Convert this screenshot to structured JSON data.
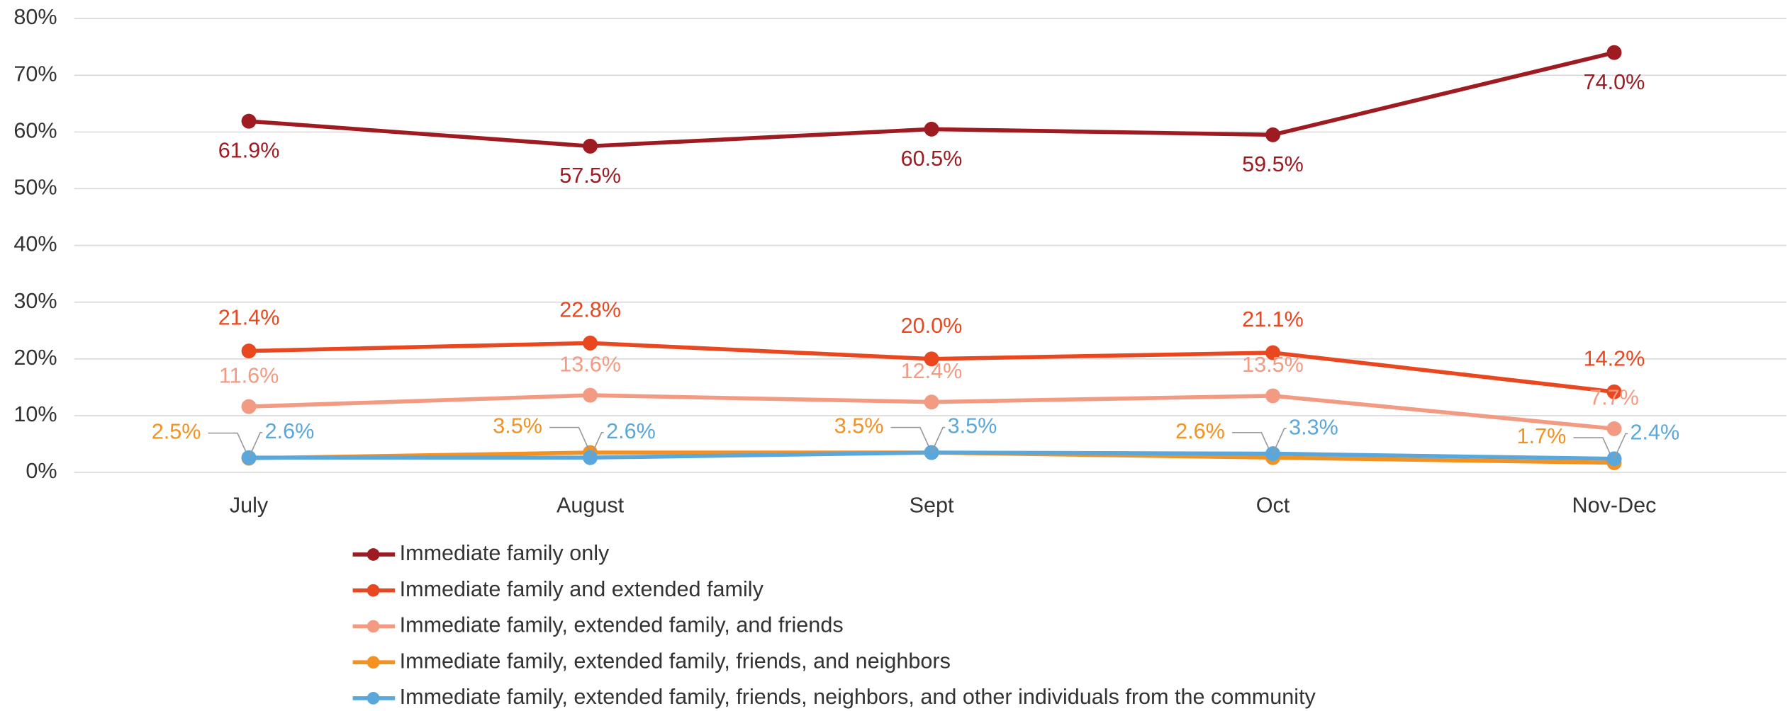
{
  "chart_data": {
    "type": "line",
    "categories": [
      "July",
      "August",
      "Sept",
      "Oct",
      "Nov-Dec"
    ],
    "ylim": [
      0,
      80
    ],
    "yticks": [
      {
        "value": 0,
        "label": "0%"
      },
      {
        "value": 10,
        "label": "10%"
      },
      {
        "value": 20,
        "label": "20%"
      },
      {
        "value": 30,
        "label": "30%"
      },
      {
        "value": 40,
        "label": "40%"
      },
      {
        "value": 50,
        "label": "50%"
      },
      {
        "value": 60,
        "label": "60%"
      },
      {
        "value": 70,
        "label": "70%"
      },
      {
        "value": 80,
        "label": "80%"
      }
    ],
    "grid": true,
    "legend": "bottom",
    "series": [
      {
        "name": "Immediate family only",
        "color": "#9e1b22",
        "values": [
          61.9,
          57.5,
          60.5,
          59.5,
          74.0
        ],
        "value_labels": [
          "61.9%",
          "57.5%",
          "60.5%",
          "59.5%",
          "74.0%"
        ]
      },
      {
        "name": "Immediate family and extended family",
        "color": "#e8471f",
        "values": [
          21.4,
          22.8,
          20.0,
          21.1,
          14.2
        ],
        "value_labels": [
          "21.4%",
          "22.8%",
          "20.0%",
          "21.1%",
          "14.2%"
        ]
      },
      {
        "name": "Immediate family, extended family, and friends",
        "color": "#f29a82",
        "values": [
          11.6,
          13.6,
          12.4,
          13.5,
          7.7
        ],
        "value_labels": [
          "11.6%",
          "13.6%",
          "12.4%",
          "13.5%",
          "7.7%"
        ]
      },
      {
        "name": "Immediate family, extended family, friends, and neighbors",
        "color": "#f39121",
        "values": [
          2.5,
          3.5,
          3.5,
          2.6,
          1.7
        ],
        "value_labels": [
          "2.5%",
          "3.5%",
          "3.5%",
          "2.6%",
          "1.7%"
        ]
      },
      {
        "name": "Immediate family, extended family, friends, neighbors, and other individuals from the community",
        "color": "#5aa7dc",
        "values": [
          2.6,
          2.6,
          3.5,
          3.3,
          2.4
        ],
        "value_labels": [
          "2.6%",
          "2.6%",
          "3.5%",
          "3.3%",
          "2.4%"
        ]
      }
    ]
  }
}
